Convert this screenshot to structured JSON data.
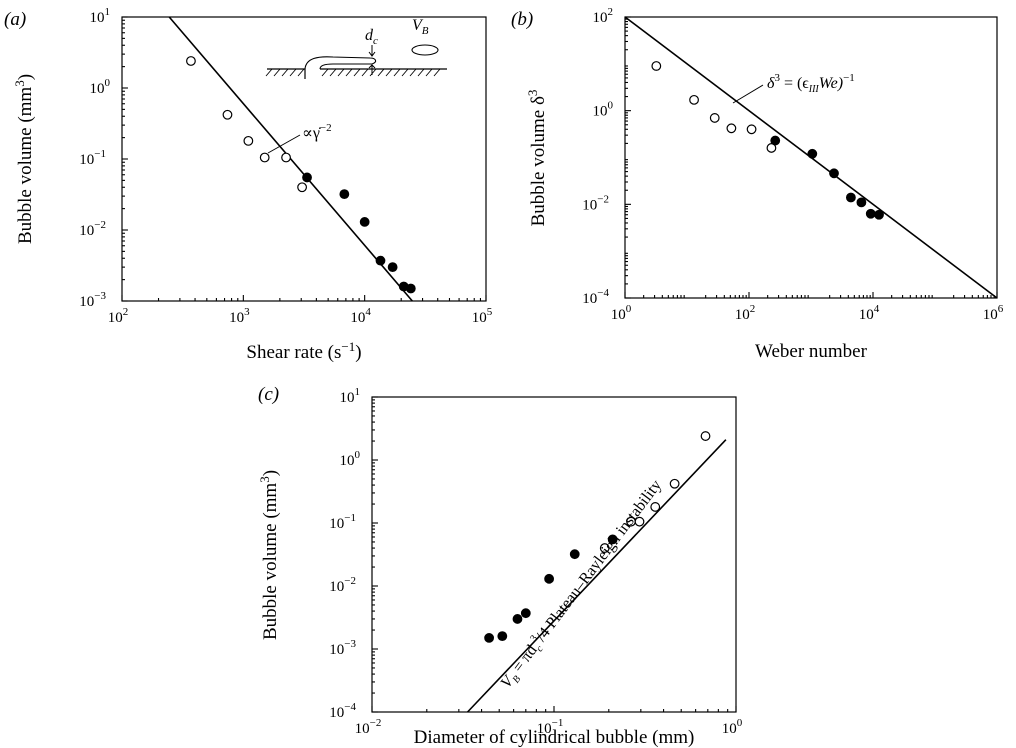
{
  "chart_data": [
    {
      "type": "scatter",
      "panel_label": "(a)",
      "xlabel": "Shear rate (s",
      "xlabel_sup": "−1",
      "xlabel_end": ")",
      "ylabel": "Bubble volume  (mm",
      "ylabel_sup": "3",
      "ylabel_end": ")",
      "xscale": "log",
      "yscale": "log",
      "xlim": [
        100,
        100000
      ],
      "ylim": [
        0.001,
        10
      ],
      "xticks": [
        {
          "v": 100,
          "m": "10",
          "e": "2"
        },
        {
          "v": 1000,
          "m": "10",
          "e": "3"
        },
        {
          "v": 10000,
          "m": "10",
          "e": "4"
        },
        {
          "v": 100000,
          "m": "10",
          "e": "5"
        }
      ],
      "yticks": [
        {
          "v": 0.001,
          "m": "10",
          "e": "−3"
        },
        {
          "v": 0.01,
          "m": "10",
          "e": "−2"
        },
        {
          "v": 0.1,
          "m": "10",
          "e": "−1"
        },
        {
          "v": 1,
          "m": "10",
          "e": "0"
        },
        {
          "v": 10,
          "m": "10",
          "e": "1"
        }
      ],
      "series": [
        {
          "marker": "open",
          "points": [
            [
              370,
              2.4
            ],
            [
              740,
              0.42
            ],
            [
              1100,
              0.18
            ],
            [
              1500,
              0.105
            ],
            [
              2250,
              0.105
            ],
            [
              3050,
              0.04
            ]
          ]
        },
        {
          "marker": "filled",
          "points": [
            [
              3350,
              0.055
            ],
            [
              6800,
              0.032
            ],
            [
              10000,
              0.013
            ],
            [
              13500,
              0.0037
            ],
            [
              17000,
              0.003
            ],
            [
              21000,
              0.0016
            ],
            [
              24000,
              0.0015
            ]
          ]
        }
      ],
      "line": {
        "x": [
          245,
          24700
        ],
        "y": [
          10,
          0.001
        ]
      },
      "annotations": [
        {
          "text": "∝γ̇",
          "sup": "−2"
        }
      ],
      "inset": {
        "label_dc": "d",
        "label_dc_sub": "c",
        "label_vb": "V",
        "label_vb_sub": "B"
      }
    },
    {
      "type": "scatter",
      "panel_label": "(b)",
      "xlabel": "Weber number",
      "ylabel": "Bubble volume  δ",
      "ylabel_sup": "3",
      "xscale": "log",
      "yscale": "log",
      "xlim": [
        1,
        1000000
      ],
      "ylim": [
        0.0001,
        100
      ],
      "xticks": [
        {
          "v": 1,
          "m": "10",
          "e": "0"
        },
        {
          "v": 100,
          "m": "10",
          "e": "2"
        },
        {
          "v": 10000,
          "m": "10",
          "e": "4"
        },
        {
          "v": 1000000,
          "m": "10",
          "e": "6"
        }
      ],
      "yticks": [
        {
          "v": 0.0001,
          "m": "10",
          "e": "−4"
        },
        {
          "v": 0.01,
          "m": "10",
          "e": "−2"
        },
        {
          "v": 1,
          "m": "10",
          "e": "0"
        },
        {
          "v": 100,
          "m": "10",
          "e": "2"
        }
      ],
      "series": [
        {
          "marker": "open",
          "points": [
            [
              3.2,
              9.0
            ],
            [
              13,
              1.7
            ],
            [
              28,
              0.7
            ],
            [
              52,
              0.42
            ],
            [
              110,
              0.4
            ],
            [
              230,
              0.16
            ]
          ]
        },
        {
          "marker": "filled",
          "points": [
            [
              265,
              0.23
            ],
            [
              1050,
              0.12
            ],
            [
              2350,
              0.046
            ],
            [
              4400,
              0.014
            ],
            [
              6500,
              0.011
            ],
            [
              9200,
              0.0063
            ],
            [
              12500,
              0.006
            ]
          ]
        }
      ],
      "line": {
        "x": [
          1,
          1000000
        ],
        "y": [
          100,
          0.0001
        ]
      },
      "annotations": [
        {
          "text_pre": "δ",
          "text_pre_sup": "3",
          "text_mid": " = (ϵ",
          "text_sub": "III",
          "text_post": "We)",
          "text_post_sup": "−1"
        }
      ]
    },
    {
      "type": "scatter",
      "panel_label": "(c)",
      "xlabel": "Diameter of cylindrical bubble (mm)",
      "ylabel": "Bubble volume  (mm",
      "ylabel_sup": "3",
      "ylabel_end": ")",
      "xscale": "log",
      "yscale": "log",
      "xlim": [
        0.01,
        1
      ],
      "ylim": [
        0.0001,
        10
      ],
      "xticks": [
        {
          "v": 0.01,
          "m": "10",
          "e": "−2"
        },
        {
          "v": 0.1,
          "m": "10",
          "e": "−1"
        },
        {
          "v": 1,
          "m": "10",
          "e": "0"
        }
      ],
      "yticks": [
        {
          "v": 0.0001,
          "m": "10",
          "e": "−4"
        },
        {
          "v": 0.001,
          "m": "10",
          "e": "−3"
        },
        {
          "v": 0.01,
          "m": "10",
          "e": "−2"
        },
        {
          "v": 0.1,
          "m": "10",
          "e": "−1"
        },
        {
          "v": 1,
          "m": "10",
          "e": "0"
        },
        {
          "v": 10,
          "m": "10",
          "e": "1"
        }
      ],
      "series": [
        {
          "marker": "open",
          "points": [
            [
              0.19,
              0.04
            ],
            [
              0.265,
              0.105
            ],
            [
              0.295,
              0.105
            ],
            [
              0.36,
              0.18
            ],
            [
              0.46,
              0.42
            ],
            [
              0.68,
              2.4
            ]
          ]
        },
        {
          "marker": "filled",
          "points": [
            [
              0.044,
              0.0015
            ],
            [
              0.052,
              0.0016
            ],
            [
              0.063,
              0.003
            ],
            [
              0.07,
              0.0037
            ],
            [
              0.094,
              0.013
            ],
            [
              0.13,
              0.032
            ],
            [
              0.21,
              0.055
            ]
          ]
        }
      ],
      "line": {
        "x": [
          0.0335,
          0.88
        ],
        "y": [
          0.0001,
          2.1
        ]
      },
      "annotations": [
        {
          "text_pre": "V",
          "text_pre_sub": "B",
          "text_mid": " = πd",
          "text_mid_sub": "c",
          "text_mid_sup": "3",
          "text_post": "/4 Plateau–Rayleigh instability"
        }
      ]
    }
  ]
}
